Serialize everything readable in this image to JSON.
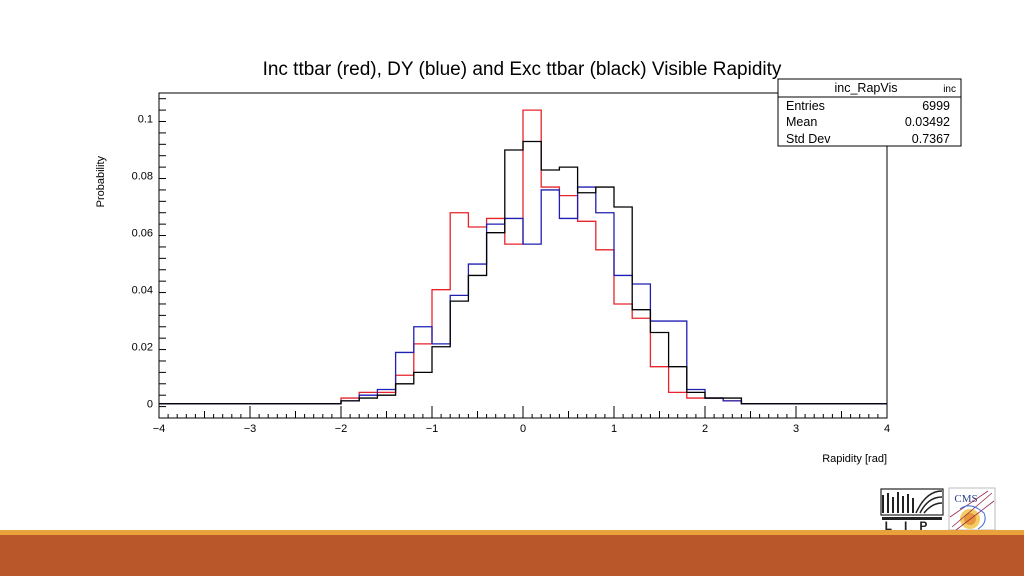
{
  "chart_data": {
    "type": "histogram",
    "title": "Inc ttbar (red), DY (blue) and Exc ttbar (black) Visible Rapidity",
    "xlabel": "Rapidity [rad]",
    "ylabel": "Probability",
    "xlim": [
      -4,
      4
    ],
    "ylim": [
      -0.005,
      0.109
    ],
    "x_ticks": [
      -4,
      -3,
      -2,
      -1,
      0,
      1,
      2,
      3,
      4
    ],
    "x_tick_labels": [
      "−4",
      "−3",
      "−2",
      "−1",
      "0",
      "1",
      "2",
      "3",
      "4"
    ],
    "y_ticks": [
      0,
      0.02,
      0.04,
      0.06,
      0.08,
      0.1
    ],
    "y_tick_labels": [
      "0",
      "0.02",
      "0.04",
      "0.06",
      "0.08",
      "0.1"
    ],
    "bin_edges": [
      -2.0,
      -1.8,
      -1.6,
      -1.4,
      -1.2,
      -1.0,
      -0.8,
      -0.6,
      -0.4,
      -0.2,
      0.0,
      0.2,
      0.4,
      0.6,
      0.8,
      1.0,
      1.2,
      1.4,
      1.6,
      1.8,
      2.0,
      2.2,
      2.4
    ],
    "series": [
      {
        "name": "Inc ttbar",
        "color": "#e8232b",
        "values": [
          0.002,
          0.004,
          0.004,
          0.01,
          0.021,
          0.04,
          0.067,
          0.062,
          0.065,
          0.056,
          0.103,
          0.076,
          0.073,
          0.064,
          0.054,
          0.035,
          0.03,
          0.013,
          0.004,
          0.002,
          0.002,
          0.001
        ]
      },
      {
        "name": "DY",
        "color": "#1f1fb4",
        "values": [
          0.001,
          0.003,
          0.005,
          0.018,
          0.027,
          0.021,
          0.038,
          0.049,
          0.063,
          0.065,
          0.056,
          0.075,
          0.065,
          0.076,
          0.067,
          0.045,
          0.042,
          0.029,
          0.029,
          0.005,
          0.002,
          0.001
        ]
      },
      {
        "name": "Exc ttbar",
        "color": "#000000",
        "values": [
          0.001,
          0.002,
          0.003,
          0.007,
          0.011,
          0.02,
          0.036,
          0.045,
          0.06,
          0.089,
          0.092,
          0.082,
          0.083,
          0.074,
          0.076,
          0.069,
          0.033,
          0.025,
          0.013,
          0.004,
          0.002,
          0.002
        ]
      }
    ],
    "stats_box": {
      "name": "inc_RapVis",
      "tag": "inc",
      "rows": [
        {
          "label": "Entries",
          "value": "6999"
        },
        {
          "label": "Mean",
          "value": "0.03492"
        },
        {
          "label": "Std Dev",
          "value": "0.7367"
        }
      ]
    },
    "grid": false,
    "legend": "none"
  },
  "footer": {
    "bar_color": "#b9572b",
    "line_color": "#e9a23b"
  },
  "logos": {
    "lip": "LIP",
    "cms": "CMS"
  }
}
